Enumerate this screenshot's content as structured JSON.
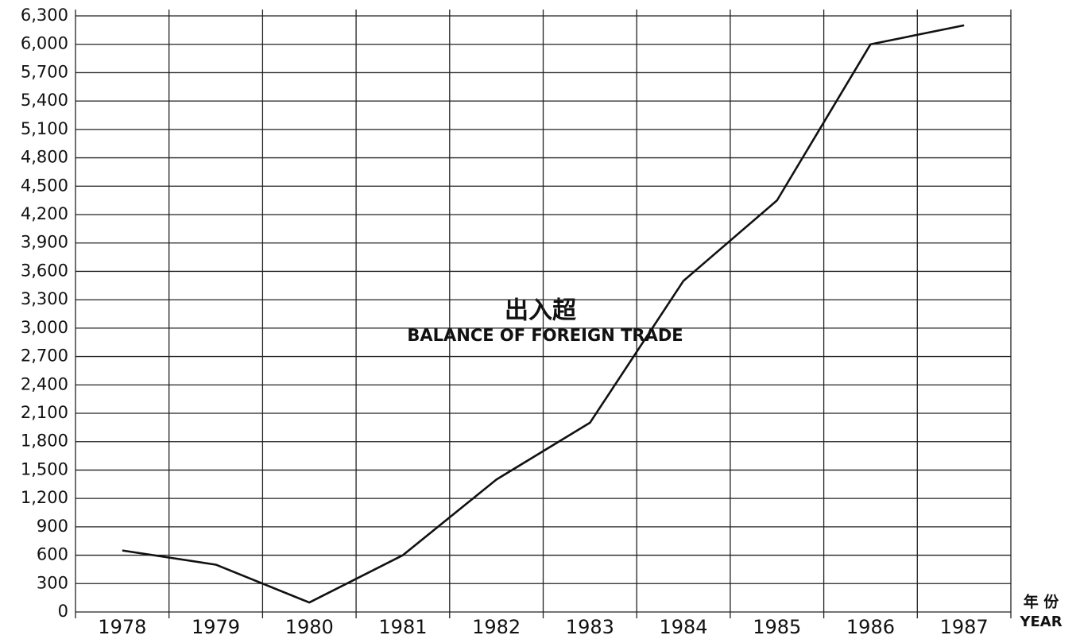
{
  "chart_data": {
    "type": "line",
    "title": "出入超",
    "subtitle": "BALANCE OF FOREIGN TRADE",
    "x_label": "年 份",
    "x_label_en": "YEAR",
    "categories": [
      "1978",
      "1979",
      "1980",
      "1981",
      "1982",
      "1983",
      "1984",
      "1985",
      "1986",
      "1987"
    ],
    "values": [
      650,
      500,
      100,
      600,
      1400,
      2000,
      3500,
      4350,
      6000,
      6200
    ],
    "color": "#111111",
    "ylim": [
      0,
      6300
    ],
    "yticks": [
      0,
      300,
      600,
      900,
      {
        "value": 1200,
        "label": "1,200"
      },
      {
        "value": 1500,
        "label": "1,500"
      },
      {
        "value": 1800,
        "label": "1,800"
      },
      {
        "value": 2100,
        "label": "2,100"
      },
      {
        "value": 2400,
        "label": "2,400"
      },
      {
        "value": 2700,
        "label": "2,700"
      },
      {
        "value": 3000,
        "label": "3,000"
      },
      {
        "value": 3300,
        "label": "3,300"
      },
      {
        "value": 3600,
        "label": "3,600"
      },
      {
        "value": 3900,
        "label": "3,900"
      },
      {
        "value": 4200,
        "label": "4,200"
      },
      {
        "value": 4500,
        "label": "4,500"
      },
      {
        "value": 4800,
        "label": "4,800"
      },
      {
        "value": 5100,
        "label": "5,100"
      },
      {
        "value": 5400,
        "label": "5,400"
      },
      {
        "value": 5700,
        "label": "5,700"
      },
      {
        "value": 6000,
        "label": "6,000"
      },
      {
        "value": 6300,
        "label": "6,300"
      }
    ],
    "grid": true
  }
}
